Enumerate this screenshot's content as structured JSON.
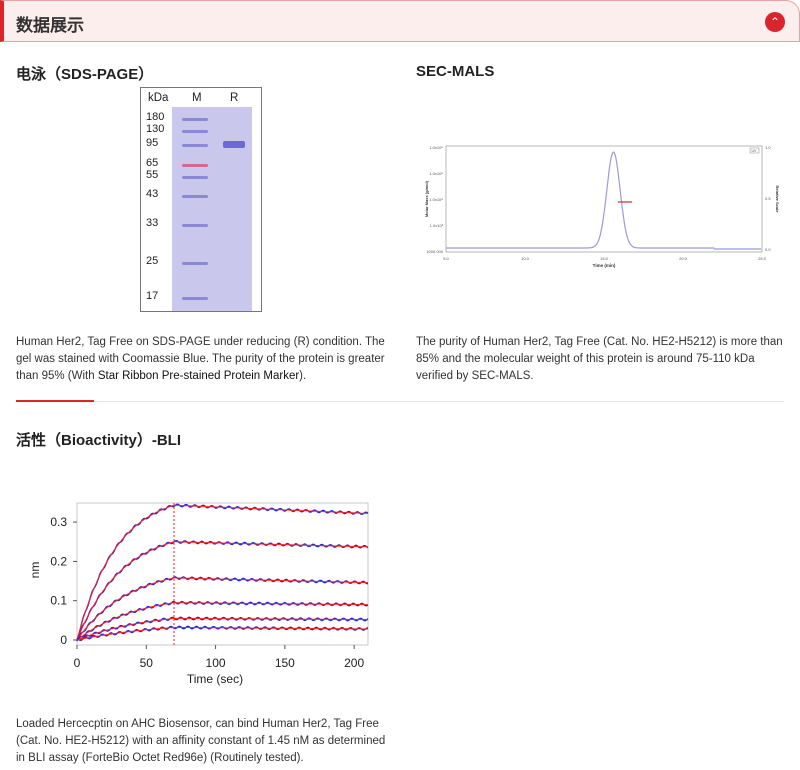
{
  "header": {
    "title": "数据展示",
    "toggle_icon": "chevron-up-icon"
  },
  "sds": {
    "title": "电泳（SDS-PAGE）",
    "col_kda": "kDa",
    "col_m": "M",
    "col_r": "R",
    "markers": [
      "180",
      "130",
      "95",
      "65",
      "55",
      "43",
      "33",
      "25",
      "17"
    ],
    "caption_pre": "Human Her2, Tag Free on SDS-PAGE under reducing (R) condition. The gel was stained with Coomassie Blue. The purity of the protein is greater than 95% (With ",
    "caption_link": "Star Ribbon Pre-stained Protein Marker",
    "caption_post": ")."
  },
  "sec": {
    "title": "SEC-MALS",
    "caption": "The purity of Human Her2, Tag Free (Cat. No. HE2-H5212) is more than 85% and the molecular weight of this protein is around 75-110 kDa verified by SEC-MALS.",
    "chart": {
      "xlabel": "Time (min)",
      "ylabel": "Molar Mass (g/mol)",
      "y2label": "Relative Scale",
      "xticks": [
        "5.0",
        "10.0",
        "15.0",
        "20.0",
        "25.0"
      ],
      "yticks": [
        "1.0x10⁶",
        "1.0x10⁵",
        "1.0x10⁴",
        "1.0x10³",
        "1000.000"
      ],
      "y2ticks": [
        "1.0",
        "0.5",
        "0.0"
      ],
      "legend": "UV",
      "peak_time": 15.6,
      "colors": {
        "trace": "#9b9bd6",
        "mass": "#d9252b"
      }
    }
  },
  "bli": {
    "title": "活性（Bioactivity）-BLI",
    "caption": "Loaded Hercecptin on AHC Biosensor, can bind Human Her2, Tag Free (Cat. No. HE2-H5212) with an affinity constant of 1.45 nM as determined in BLI assay (ForteBio Octet Red96e) (Routinely tested).",
    "chart_data": {
      "type": "line",
      "xlabel": "Time (sec)",
      "ylabel": "nm",
      "xlim": [
        0,
        210
      ],
      "ylim": [
        -0.02,
        0.35
      ],
      "xticks": [
        "0",
        "50",
        "100",
        "150",
        "200"
      ],
      "yticks": [
        "0",
        "0.1",
        "0.2",
        "0.3"
      ],
      "dissociation_start": 70,
      "series": [
        {
          "peak": 0.343,
          "end": 0.322
        },
        {
          "peak": 0.25,
          "end": 0.237
        },
        {
          "peak": 0.158,
          "end": 0.146
        },
        {
          "peak": 0.095,
          "end": 0.09
        },
        {
          "peak": 0.055,
          "end": 0.052
        },
        {
          "peak": 0.032,
          "end": 0.028
        }
      ],
      "colors": {
        "data": "#2a2ad0",
        "fit": "#ff2020"
      }
    }
  }
}
